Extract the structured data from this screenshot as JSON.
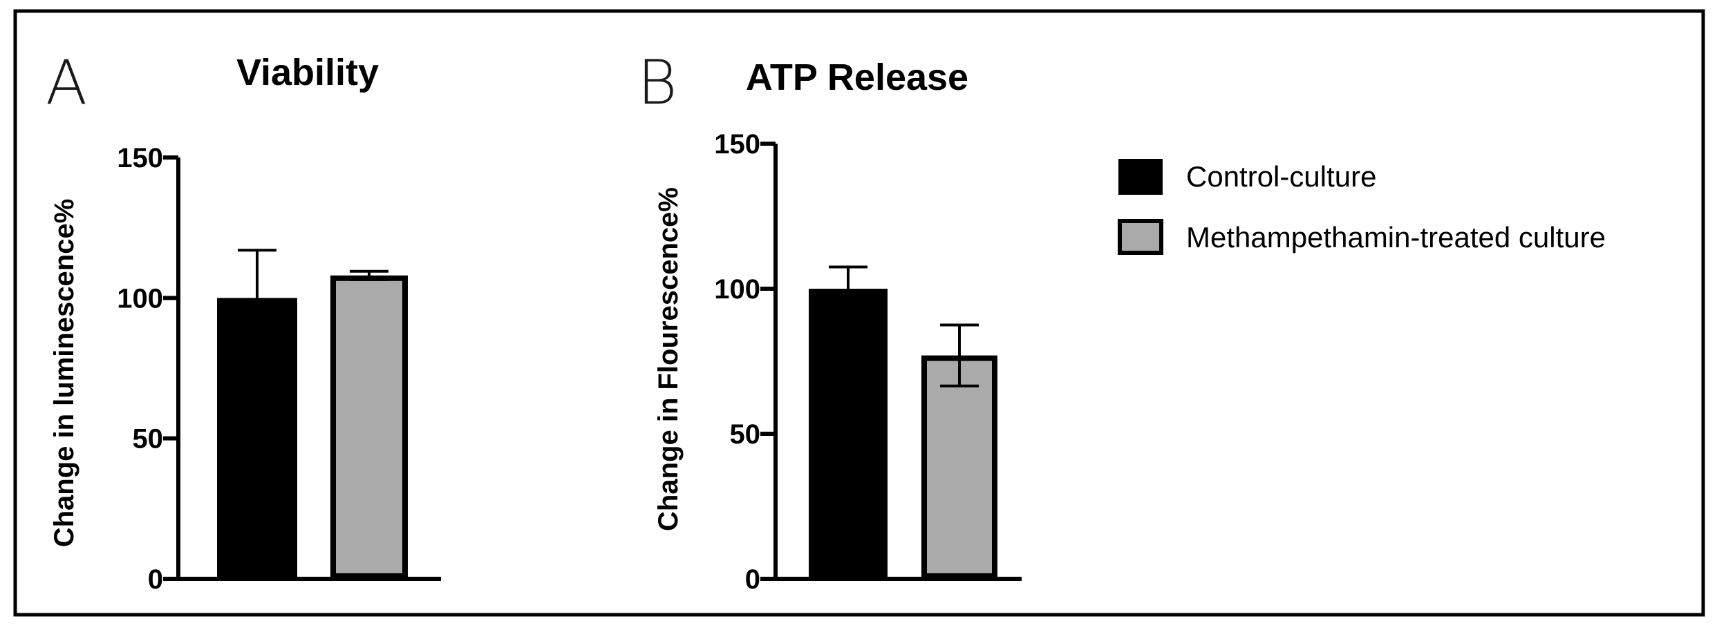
{
  "panels": [
    {
      "letter": "A",
      "title": "Viability"
    },
    {
      "letter": "B",
      "title": "ATP Release"
    }
  ],
  "legend": [
    {
      "label": "Control-culture",
      "color": "#000000"
    },
    {
      "label": "Methampethamin-treated culture",
      "color": "#aaaaaa"
    }
  ],
  "colors": {
    "control": "#000000",
    "treated": "#aaaaaa",
    "outline": "#000000",
    "frame": "#000000"
  },
  "chart_data": [
    {
      "type": "bar",
      "title": "Viability",
      "xlabel": "",
      "ylabel": "Change in luminescence%",
      "ylim": [
        0,
        150
      ],
      "yticks": [
        "0",
        "50",
        "100",
        "150"
      ],
      "series": [
        {
          "name": "Control-culture",
          "values": [
            100
          ],
          "error": [
            17
          ]
        },
        {
          "name": "Methampethamin-treated culture",
          "values": [
            108
          ],
          "error": [
            1.5
          ]
        }
      ],
      "legend_position": "right"
    },
    {
      "type": "bar",
      "title": "ATP Release",
      "xlabel": "",
      "ylabel": "Change in Flourescence%",
      "ylim": [
        0,
        150
      ],
      "yticks": [
        "0",
        "50",
        "100",
        "150"
      ],
      "series": [
        {
          "name": "Control-culture",
          "values": [
            100
          ],
          "error": [
            7.5
          ]
        },
        {
          "name": "Methampethamin-treated culture",
          "values": [
            77
          ],
          "error": [
            10.5
          ]
        }
      ],
      "legend_position": "right"
    }
  ]
}
